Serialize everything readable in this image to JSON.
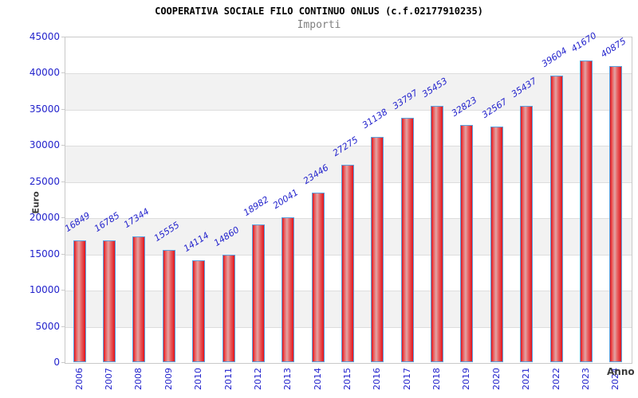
{
  "chart_data": {
    "type": "bar",
    "title": "COOPERATIVA SOCIALE FILO CONTINUO ONLUS (c.f.02177910235)",
    "subtitle": "Importi",
    "xlabel": "Anno",
    "ylabel": "Euro",
    "categories": [
      "2006",
      "2007",
      "2008",
      "2009",
      "2010",
      "2011",
      "2012",
      "2013",
      "2014",
      "2015",
      "2016",
      "2017",
      "2018",
      "2019",
      "2020",
      "2021",
      "2022",
      "2023",
      "2024"
    ],
    "values": [
      16849,
      16785,
      17344,
      15555,
      14114,
      14860,
      18982,
      20041,
      23446,
      27275,
      31138,
      33797,
      35453,
      32823,
      32567,
      35437,
      39604,
      41670,
      40875
    ],
    "ylim": [
      0,
      45000
    ],
    "ytick_step": 5000,
    "yticks": [
      0,
      5000,
      10000,
      15000,
      20000,
      25000,
      30000,
      35000,
      40000,
      45000
    ],
    "grid": "horizontal",
    "legend": null,
    "layout_hints": {
      "bands_alternating": true,
      "x_labels_rotation_deg": 90,
      "value_labels_rotation_deg": 33
    },
    "colors": {
      "bar_fill": "#e2131b",
      "bar_highlight": "#e2a4a4",
      "bar_border": "#5aa2e0",
      "axis_label_blue": "#2323cc",
      "value_label_blue": "#2323cc",
      "band_gray": "#f2f2f2",
      "band_white": "#ffffff",
      "gridline": "#dddddd",
      "plot_border": "#c9c9c9",
      "title_color": "#000000",
      "subtitle_gray": "#808080",
      "axis_title_color": "#3a3a3a"
    }
  }
}
